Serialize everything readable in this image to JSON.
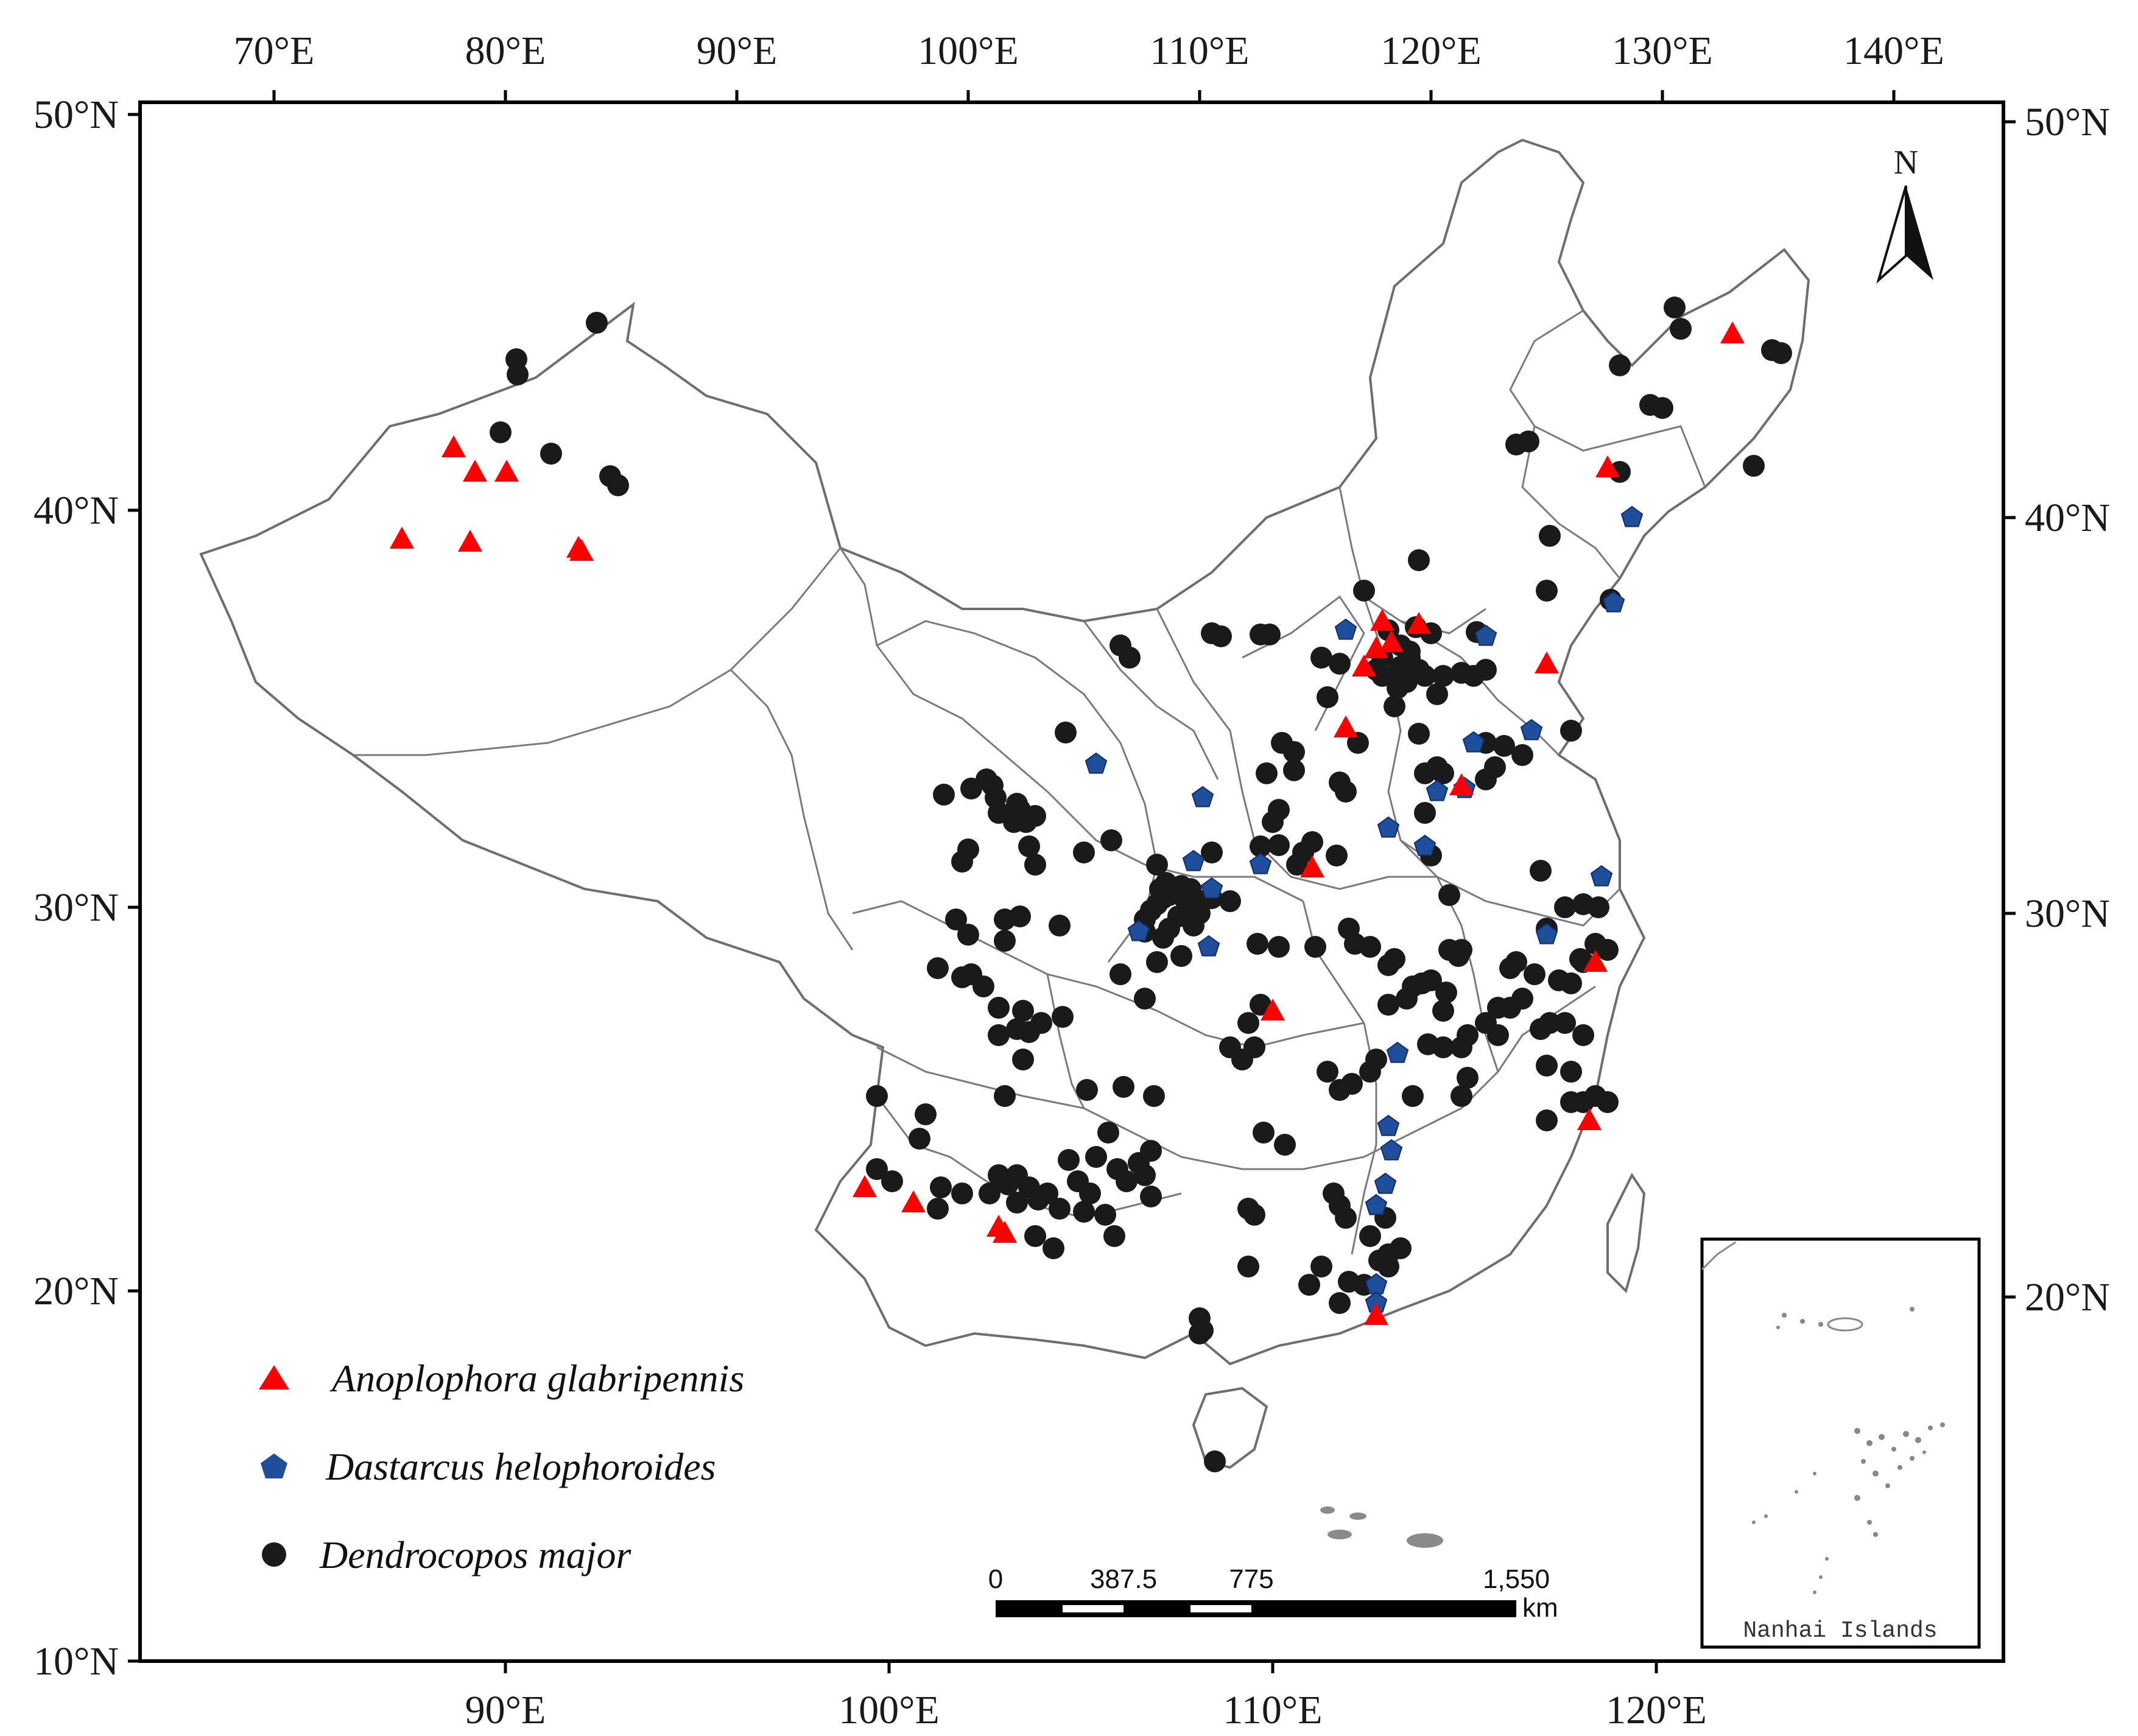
{
  "map": {
    "top_ticks": [
      "70°E",
      "80°E",
      "90°E",
      "100°E",
      "110°E",
      "120°E",
      "130°E",
      "140°E"
    ],
    "bottom_ticks": [
      "90°E",
      "100°E",
      "110°E",
      "120°E"
    ],
    "left_ticks": [
      "50°N",
      "40°N",
      "30°N",
      "20°N",
      "10°N"
    ],
    "right_ticks": [
      "50°N",
      "40°N",
      "30°N",
      "20°N"
    ],
    "north_label": "N",
    "inset_label": "Nanhai Islands",
    "scale_bar": {
      "labels": [
        "0",
        "387.5",
        "775",
        "1,550"
      ],
      "unit": "km"
    },
    "legend": [
      {
        "label": "Anoplophora glabripennis",
        "marker": "triangle",
        "color": "#ff0000"
      },
      {
        "label": "Dastarcus helophoroides",
        "marker": "pentagon",
        "color": "#1f4e9c"
      },
      {
        "label": "Dendrocopos major",
        "marker": "circle",
        "color": "#1a1a1a"
      }
    ],
    "colors": {
      "boundary": "#7a7a7a",
      "frame": "#000000",
      "background": "#ffffff"
    }
  }
}
